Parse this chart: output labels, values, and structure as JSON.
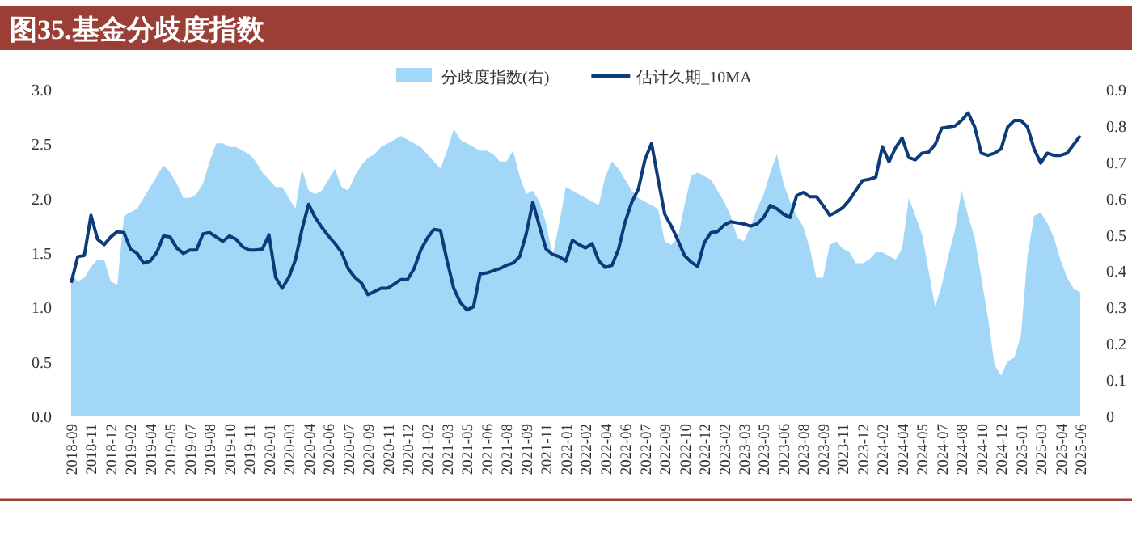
{
  "chart_data": {
    "type": "line",
    "title": "图35.基金分歧度指数",
    "categories": [
      "2018-09",
      null,
      null,
      "2018-11",
      null,
      null,
      "2018-12",
      null,
      null,
      "2019-02",
      null,
      null,
      "2019-04",
      null,
      null,
      "2019-05",
      null,
      null,
      "2019-07",
      null,
      null,
      "2019-08",
      null,
      null,
      "2019-10",
      null,
      null,
      "2019-11",
      null,
      null,
      "2020-01",
      null,
      null,
      "2020-03",
      null,
      null,
      "2020-04",
      null,
      null,
      "2020-06",
      null,
      null,
      "2020-07",
      null,
      null,
      "2020-09",
      null,
      null,
      "2020-11",
      null,
      null,
      "2020-12",
      null,
      null,
      "2021-02",
      null,
      null,
      "2021-03",
      null,
      null,
      "2021-05",
      null,
      null,
      "2021-06",
      null,
      null,
      "2021-08",
      null,
      null,
      "2021-09",
      null,
      null,
      "2021-11",
      null,
      null,
      "2022-01",
      null,
      null,
      "2022-02",
      null,
      null,
      "2022-04",
      null,
      null,
      "2022-06",
      null,
      null,
      "2022-07",
      null,
      null,
      "2022-09",
      null,
      null,
      "2022-10",
      null,
      null,
      "2022-12",
      null,
      null,
      "2023-02",
      null,
      null,
      "2023-03",
      null,
      null,
      "2023-05",
      null,
      null,
      "2023-06",
      null,
      null,
      "2023-08",
      null,
      null,
      "2023-09",
      null,
      null,
      "2023-11",
      null,
      null,
      "2023-12",
      null,
      null,
      "2024-02",
      null,
      null,
      "2024-04",
      null,
      null,
      "2024-05",
      null,
      null,
      "2024-07",
      null,
      null,
      "2024-08",
      null,
      null,
      "2024-10",
      null,
      null,
      "2024-12",
      null,
      null,
      "2025-01",
      null,
      null,
      "2025-03",
      null,
      null,
      "2025-04",
      null,
      null,
      "2025-06"
    ],
    "ylim": [
      0,
      3
    ],
    "yticks": [
      {
        "value": 0,
        "label": "0.0"
      },
      0.5,
      {
        "value": 1,
        "label": "1.0"
      },
      1.5,
      {
        "value": 2,
        "label": "2.0"
      },
      2.5,
      {
        "value": 3,
        "label": "3.0"
      }
    ],
    "y2lim": [
      0,
      0.9
    ],
    "y2ticks": [
      0,
      0.1,
      0.2,
      0.3,
      0.4,
      0.5,
      0.6,
      0.7,
      0.8,
      0.9
    ],
    "legend": "top",
    "grid": false,
    "series": [
      {
        "name": "分歧度指数(右)",
        "type": "area",
        "axis": "y2",
        "color": "#a3d7f7",
        "values": [
          0.39,
          0.37,
          0.38,
          0.41,
          0.43,
          0.43,
          0.37,
          0.36,
          0.55,
          0.56,
          0.57,
          0.6,
          0.63,
          0.66,
          0.69,
          0.67,
          0.64,
          0.6,
          0.6,
          0.61,
          0.64,
          0.7,
          0.75,
          0.75,
          0.74,
          0.74,
          0.73,
          0.72,
          0.7,
          0.67,
          0.65,
          0.63,
          0.63,
          0.6,
          0.57,
          0.68,
          0.62,
          0.61,
          0.62,
          0.65,
          0.68,
          0.63,
          0.62,
          0.66,
          0.69,
          0.71,
          0.72,
          0.74,
          0.75,
          0.76,
          0.77,
          0.76,
          0.75,
          0.74,
          0.72,
          0.7,
          0.68,
          0.73,
          0.79,
          0.76,
          0.75,
          0.74,
          0.73,
          0.73,
          0.72,
          0.7,
          0.7,
          0.73,
          0.66,
          0.61,
          0.62,
          0.59,
          0.53,
          0.44,
          0.53,
          0.63,
          0.62,
          0.61,
          0.6,
          0.59,
          0.58,
          0.66,
          0.7,
          0.68,
          0.65,
          0.62,
          0.6,
          0.59,
          0.58,
          0.57,
          0.48,
          0.47,
          0.49,
          0.58,
          0.66,
          0.67,
          0.66,
          0.65,
          0.62,
          0.59,
          0.55,
          0.49,
          0.48,
          0.52,
          0.57,
          0.61,
          0.67,
          0.72,
          0.64,
          0.59,
          0.55,
          0.52,
          0.46,
          0.38,
          0.38,
          0.47,
          0.48,
          0.46,
          0.45,
          0.42,
          0.42,
          0.43,
          0.45,
          0.45,
          0.44,
          0.43,
          0.46,
          0.6,
          0.55,
          0.5,
          0.4,
          0.3,
          0.36,
          0.44,
          0.51,
          0.62,
          0.55,
          0.49,
          0.38,
          0.27,
          0.14,
          0.11,
          0.15,
          0.16,
          0.22,
          0.44,
          0.55,
          0.56,
          0.53,
          0.49,
          0.43,
          0.38,
          0.35,
          0.34
        ]
      },
      {
        "name": "估计久期_10MA",
        "color": "#0b3b78",
        "values": [
          1.22,
          1.46,
          1.47,
          1.84,
          1.62,
          1.57,
          1.64,
          1.69,
          1.68,
          1.53,
          1.49,
          1.4,
          1.42,
          1.5,
          1.65,
          1.64,
          1.54,
          1.49,
          1.52,
          1.52,
          1.67,
          1.68,
          1.64,
          1.6,
          1.65,
          1.62,
          1.55,
          1.52,
          1.52,
          1.53,
          1.66,
          1.27,
          1.17,
          1.27,
          1.43,
          1.71,
          1.94,
          1.82,
          1.73,
          1.65,
          1.58,
          1.5,
          1.35,
          1.27,
          1.22,
          1.11,
          1.14,
          1.17,
          1.17,
          1.21,
          1.25,
          1.25,
          1.35,
          1.52,
          1.63,
          1.71,
          1.7,
          1.42,
          1.17,
          1.04,
          0.97,
          1.0,
          1.3,
          1.31,
          1.33,
          1.35,
          1.38,
          1.4,
          1.46,
          1.67,
          1.96,
          1.74,
          1.53,
          1.48,
          1.46,
          1.42,
          1.61,
          1.57,
          1.54,
          1.58,
          1.42,
          1.36,
          1.38,
          1.53,
          1.78,
          1.96,
          2.08,
          2.35,
          2.5,
          2.17,
          1.85,
          1.74,
          1.61,
          1.47,
          1.41,
          1.37,
          1.59,
          1.68,
          1.69,
          1.75,
          1.78,
          1.77,
          1.76,
          1.74,
          1.76,
          1.82,
          1.93,
          1.9,
          1.85,
          1.82,
          2.02,
          2.05,
          2.01,
          2.01,
          1.93,
          1.84,
          1.87,
          1.91,
          1.98,
          2.07,
          2.16,
          2.17,
          2.19,
          2.47,
          2.33,
          2.46,
          2.55,
          2.37,
          2.35,
          2.41,
          2.42,
          2.49,
          2.64,
          2.65,
          2.66,
          2.71,
          2.78,
          2.65,
          2.41,
          2.39,
          2.41,
          2.45,
          2.65,
          2.71,
          2.71,
          2.65,
          2.45,
          2.32,
          2.41,
          2.39,
          2.39,
          2.41,
          2.49,
          2.57
        ]
      }
    ]
  }
}
